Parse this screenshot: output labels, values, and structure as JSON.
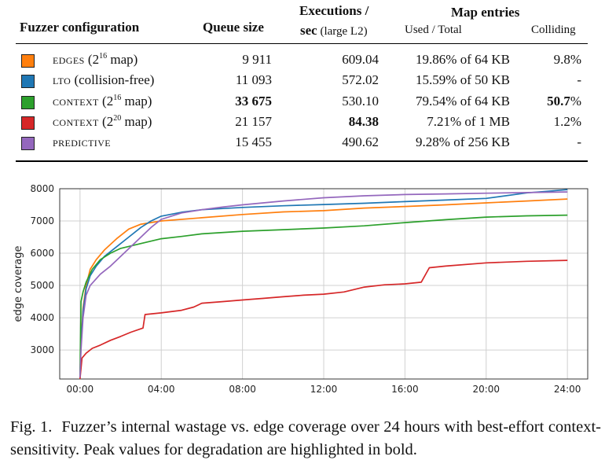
{
  "table": {
    "headers": {
      "config": "Fuzzer configuration",
      "queue": "Queue size",
      "exec_line1": "Executions /",
      "exec_line2_bold": "sec",
      "exec_line2_rest": "(large L2)",
      "map_group": "Map entries",
      "used_total": "Used / Total",
      "colliding": "Colliding"
    },
    "rows": [
      {
        "name": "edges",
        "suffix_pre": "(2",
        "sup": "16",
        "suffix_post": " map)",
        "queue": "9 911",
        "exec": "609.04",
        "map": "19.86% of 64 KB",
        "colliding": "9.8%",
        "color": "#ff7f0e"
      },
      {
        "name": "lto",
        "suffix_pre": "(collision-free)",
        "sup": "",
        "suffix_post": "",
        "queue": "11 093",
        "exec": "572.02",
        "map": "15.59% of 50 KB",
        "colliding": "-",
        "color": "#1f77b4"
      },
      {
        "name": "context",
        "suffix_pre": "(2",
        "sup": "16",
        "suffix_post": " map)",
        "queue": "33 675",
        "exec": "530.10",
        "map": "79.54% of 64 KB",
        "colliding_bold": "50.7",
        "colliding_rest": "%",
        "color": "#2ca02c"
      },
      {
        "name": "context",
        "suffix_pre": "(2",
        "sup": "20",
        "suffix_post": " map)",
        "queue": "21 157",
        "exec": "84.38",
        "map": "7.21% of 1 MB",
        "colliding": "1.2%",
        "color": "#d62728"
      },
      {
        "name": "predictive",
        "suffix_pre": "",
        "sup": "",
        "suffix_post": "",
        "queue": "15 455",
        "exec": "490.62",
        "map": "9.28% of 256 KB",
        "colliding": "-",
        "color": "#9467bd"
      }
    ]
  },
  "chart_data": {
    "type": "line",
    "ylabel": "edge coverage",
    "xlabel": "",
    "x_ticks": [
      "00:00",
      "04:00",
      "08:00",
      "12:00",
      "16:00",
      "20:00",
      "24:00"
    ],
    "y_ticks": [
      3000,
      4000,
      5000,
      6000,
      7000,
      8000
    ],
    "xlim_hours": [
      -1.0,
      25.0
    ],
    "ylim": [
      2100,
      8000
    ],
    "grid": true,
    "series": [
      {
        "color": "#ff7f0e",
        "points": [
          [
            0,
            2150
          ],
          [
            0.05,
            3300
          ],
          [
            0.15,
            4300
          ],
          [
            0.3,
            5000
          ],
          [
            0.5,
            5500
          ],
          [
            0.8,
            5800
          ],
          [
            1.2,
            6100
          ],
          [
            1.8,
            6450
          ],
          [
            2.4,
            6750
          ],
          [
            3,
            6900
          ],
          [
            4,
            7000
          ],
          [
            6,
            7100
          ],
          [
            8,
            7200
          ],
          [
            10,
            7280
          ],
          [
            12,
            7320
          ],
          [
            14,
            7400
          ],
          [
            16,
            7450
          ],
          [
            18,
            7500
          ],
          [
            20,
            7560
          ],
          [
            22,
            7620
          ],
          [
            24,
            7680
          ]
        ]
      },
      {
        "color": "#1f77b4",
        "points": [
          [
            0,
            2150
          ],
          [
            0.05,
            3200
          ],
          [
            0.15,
            4200
          ],
          [
            0.3,
            4900
          ],
          [
            0.5,
            5300
          ],
          [
            0.8,
            5600
          ],
          [
            1.2,
            5900
          ],
          [
            1.8,
            6200
          ],
          [
            2.4,
            6500
          ],
          [
            3,
            6800
          ],
          [
            3.5,
            7000
          ],
          [
            4,
            7150
          ],
          [
            5,
            7270
          ],
          [
            6,
            7350
          ],
          [
            8,
            7420
          ],
          [
            10,
            7470
          ],
          [
            12,
            7510
          ],
          [
            14,
            7550
          ],
          [
            16,
            7600
          ],
          [
            18,
            7650
          ],
          [
            20,
            7700
          ],
          [
            22,
            7870
          ],
          [
            24,
            7970
          ]
        ]
      },
      {
        "color": "#2ca02c",
        "points": [
          [
            0,
            2150
          ],
          [
            0.05,
            4500
          ],
          [
            0.15,
            4800
          ],
          [
            0.3,
            5100
          ],
          [
            0.6,
            5500
          ],
          [
            1,
            5800
          ],
          [
            1.5,
            6000
          ],
          [
            2,
            6150
          ],
          [
            3,
            6300
          ],
          [
            4,
            6450
          ],
          [
            5,
            6520
          ],
          [
            6,
            6600
          ],
          [
            8,
            6680
          ],
          [
            10,
            6730
          ],
          [
            12,
            6780
          ],
          [
            14,
            6850
          ],
          [
            16,
            6950
          ],
          [
            18,
            7040
          ],
          [
            20,
            7120
          ],
          [
            22,
            7160
          ],
          [
            24,
            7180
          ]
        ]
      },
      {
        "color": "#d62728",
        "points": [
          [
            0,
            2100
          ],
          [
            0.1,
            2750
          ],
          [
            0.3,
            2900
          ],
          [
            0.6,
            3050
          ],
          [
            1,
            3150
          ],
          [
            1.5,
            3300
          ],
          [
            2,
            3420
          ],
          [
            2.5,
            3550
          ],
          [
            3.1,
            3680
          ],
          [
            3.2,
            4100
          ],
          [
            4,
            4150
          ],
          [
            5,
            4230
          ],
          [
            5.6,
            4330
          ],
          [
            6,
            4450
          ],
          [
            7,
            4500
          ],
          [
            8,
            4550
          ],
          [
            9,
            4600
          ],
          [
            10,
            4650
          ],
          [
            11,
            4700
          ],
          [
            12,
            4730
          ],
          [
            13,
            4800
          ],
          [
            14,
            4950
          ],
          [
            15,
            5020
          ],
          [
            16,
            5050
          ],
          [
            16.8,
            5100
          ],
          [
            17.2,
            5550
          ],
          [
            18,
            5600
          ],
          [
            20,
            5700
          ],
          [
            22,
            5750
          ],
          [
            24,
            5780
          ]
        ]
      },
      {
        "color": "#9467bd",
        "points": [
          [
            0,
            2150
          ],
          [
            0.05,
            3000
          ],
          [
            0.15,
            4000
          ],
          [
            0.3,
            4700
          ],
          [
            0.5,
            5000
          ],
          [
            1,
            5350
          ],
          [
            1.5,
            5600
          ],
          [
            2,
            5900
          ],
          [
            2.5,
            6200
          ],
          [
            3,
            6500
          ],
          [
            3.5,
            6800
          ],
          [
            4,
            7050
          ],
          [
            5,
            7250
          ],
          [
            6,
            7350
          ],
          [
            7,
            7430
          ],
          [
            8,
            7500
          ],
          [
            10,
            7620
          ],
          [
            12,
            7720
          ],
          [
            14,
            7780
          ],
          [
            16,
            7820
          ],
          [
            18,
            7840
          ],
          [
            20,
            7860
          ],
          [
            22,
            7880
          ],
          [
            24,
            7900
          ]
        ]
      }
    ]
  },
  "caption": {
    "label": "Fig. 1.",
    "text": "Fuzzer’s internal wastage vs. edge coverage over 24 hours with best-effort context-sensitivity. Peak values for degradation are highlighted in bold."
  }
}
